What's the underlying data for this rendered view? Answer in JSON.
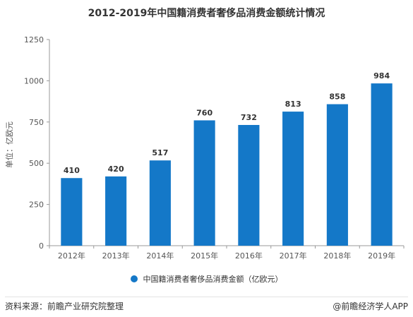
{
  "chart_data": {
    "type": "bar",
    "title": "2012-2019年中国籍消费者奢侈品消费金额统计情况",
    "ylabel": "单位：亿欧元",
    "categories": [
      "2012年",
      "2013年",
      "2014年",
      "2015年",
      "2016年",
      "2017年",
      "2018年",
      "2019年"
    ],
    "series": [
      {
        "name": "中国籍消费者奢侈品消费金额（亿欧元）",
        "values": [
          410,
          420,
          517,
          760,
          732,
          813,
          858,
          984
        ]
      }
    ],
    "ylim": [
      0,
      1250
    ],
    "yticks": [
      0,
      250,
      500,
      750,
      1000,
      1250
    ],
    "grid": false,
    "legend": "bottom",
    "color": "#1478c8"
  },
  "footer": {
    "source": "资料来源：前瞻产业研究院整理",
    "credit": "@前瞻经济学人APP"
  }
}
